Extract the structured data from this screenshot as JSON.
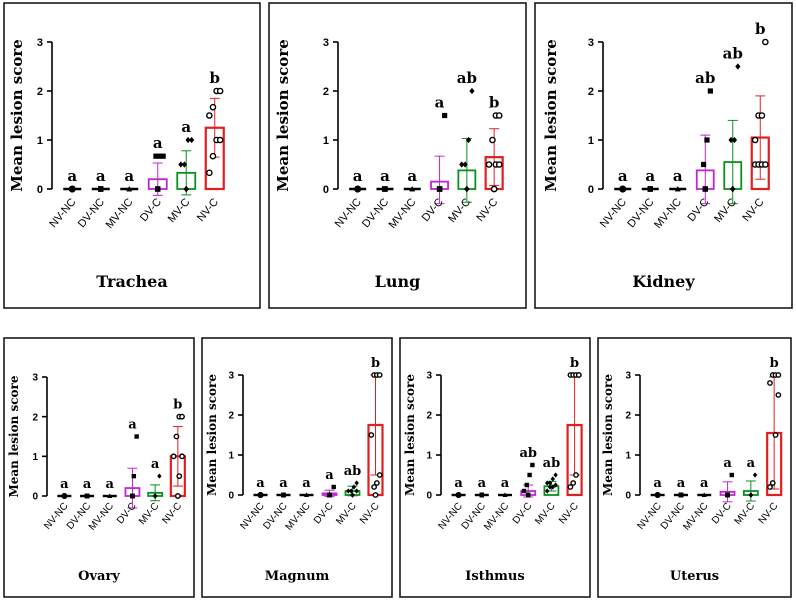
{
  "figure": {
    "ylabel": "Mean lesion score"
  },
  "chart_data": [
    {
      "type": "bar",
      "title": "Trachea",
      "ylabel": "Mean lesion score",
      "ylim": [
        0,
        3
      ],
      "yticks": [
        0,
        1,
        2,
        3
      ],
      "categories": [
        "NV-NC",
        "DV-NC",
        "MV-NC",
        "DV-C",
        "MV-C",
        "NV-C"
      ],
      "series": [
        {
          "name": "Mean lesion score",
          "values": [
            0,
            0,
            0,
            0.2,
            0.33,
            1.25
          ],
          "errors": [
            0,
            0,
            0,
            0.33,
            0.45,
            0.6
          ],
          "letters": [
            "a",
            "a",
            "a",
            "a",
            "a",
            "b"
          ],
          "points": [
            [
              0,
              0,
              0,
              0,
              0,
              0,
              0,
              0
            ],
            [
              0,
              0,
              0,
              0,
              0,
              0,
              0,
              0
            ],
            [
              0,
              0,
              0,
              0,
              0,
              0,
              0,
              0
            ],
            [
              0,
              0,
              0,
              0,
              0,
              0.67,
              0.67,
              0.67
            ],
            [
              0,
              0,
              0,
              0,
              0.5,
              0.5,
              1,
              1
            ],
            [
              0.33,
              0.67,
              1,
              1,
              1.5,
              1.67,
              2,
              2
            ]
          ],
          "markers": [
            "circle",
            "square",
            "triangle",
            "square",
            "diamond",
            "circle"
          ]
        }
      ]
    },
    {
      "type": "bar",
      "title": "Lung",
      "ylabel": "Mean lesion score",
      "ylim": [
        0,
        3
      ],
      "yticks": [
        0,
        1,
        2,
        3
      ],
      "categories": [
        "NV-NC",
        "DV-NC",
        "MV-NC",
        "DV-C",
        "MV-C",
        "NV-C"
      ],
      "series": [
        {
          "name": "Mean lesion score",
          "values": [
            0,
            0,
            0,
            0.15,
            0.38,
            0.65
          ],
          "errors": [
            0,
            0,
            0,
            0.52,
            0.65,
            0.58
          ],
          "letters": [
            "a",
            "a",
            "a",
            "a",
            "ab",
            "b"
          ],
          "points": [
            [
              0,
              0,
              0,
              0,
              0,
              0,
              0,
              0
            ],
            [
              0,
              0,
              0,
              0,
              0,
              0,
              0,
              0
            ],
            [
              0,
              0,
              0,
              0,
              0,
              0,
              0,
              0
            ],
            [
              0,
              0,
              0,
              0,
              0,
              0,
              0,
              1.5
            ],
            [
              0,
              0,
              0,
              0,
              0.5,
              0.5,
              1,
              2
            ],
            [
              0,
              0,
              0.5,
              0.5,
              0.5,
              1,
              1.5,
              1.5
            ]
          ],
          "markers": [
            "circle",
            "square",
            "triangle",
            "square",
            "diamond",
            "circle"
          ]
        }
      ]
    },
    {
      "type": "bar",
      "title": "Kidney",
      "ylabel": "Mean lesion score",
      "ylim": [
        0,
        3
      ],
      "yticks": [
        0,
        1,
        2,
        3
      ],
      "categories": [
        "NV-NC",
        "DV-NC",
        "MV-NC",
        "DV-C",
        "MV-C",
        "NV-C"
      ],
      "series": [
        {
          "name": "Mean lesion score",
          "values": [
            0,
            0,
            0,
            0.38,
            0.55,
            1.05
          ],
          "errors": [
            0,
            0,
            0,
            0.72,
            0.85,
            0.85
          ],
          "letters": [
            "a",
            "a",
            "a",
            "ab",
            "ab",
            "b"
          ],
          "points": [
            [
              0,
              0,
              0,
              0,
              0,
              0,
              0,
              0
            ],
            [
              0,
              0,
              0,
              0,
              0,
              0,
              0,
              0
            ],
            [
              0,
              0,
              0,
              0,
              0,
              0,
              0,
              0
            ],
            [
              0,
              0,
              0,
              0,
              0,
              0.5,
              1,
              2
            ],
            [
              0,
              0,
              0,
              0,
              0,
              1,
              1,
              2.5
            ],
            [
              0.5,
              0.5,
              0.5,
              0.5,
              1,
              1.5,
              1.5,
              3
            ]
          ],
          "markers": [
            "circle",
            "square",
            "triangle",
            "square",
            "diamond",
            "circle"
          ]
        }
      ]
    },
    {
      "type": "bar",
      "title": "Ovary",
      "ylabel": "Mean lesion score",
      "ylim": [
        0,
        3
      ],
      "yticks": [
        0,
        1,
        2,
        3
      ],
      "categories": [
        "NV-NC",
        "DV-NC",
        "MV-NC",
        "DV-C",
        "MV-C",
        "NV-C"
      ],
      "series": [
        {
          "name": "Mean lesion score",
          "values": [
            0,
            0,
            0,
            0.2,
            0.08,
            1.0
          ],
          "errors": [
            0,
            0,
            0,
            0.5,
            0.2,
            0.75
          ],
          "letters": [
            "a",
            "a",
            "a",
            "a",
            "a",
            "b"
          ],
          "points": [
            [
              0,
              0,
              0,
              0,
              0,
              0,
              0,
              0
            ],
            [
              0,
              0,
              0,
              0,
              0,
              0,
              0,
              0
            ],
            [
              0,
              0,
              0,
              0,
              0,
              0,
              0,
              0
            ],
            [
              0,
              0,
              0,
              0,
              0,
              0,
              0.5,
              1.5
            ],
            [
              0,
              0,
              0,
              0,
              0,
              0,
              0,
              0.5
            ],
            [
              0,
              0,
              0.5,
              1,
              1,
              1.5,
              2,
              2
            ]
          ],
          "markers": [
            "circle",
            "square",
            "triangle",
            "square",
            "diamond",
            "circle"
          ]
        }
      ]
    },
    {
      "type": "bar",
      "title": "Magnum",
      "ylabel": "Mean lesion score",
      "ylim": [
        0,
        3
      ],
      "yticks": [
        0,
        1,
        2,
        3
      ],
      "categories": [
        "NV-NC",
        "DV-NC",
        "MV-NC",
        "DV-C",
        "MV-C",
        "NV-C"
      ],
      "series": [
        {
          "name": "Mean lesion score",
          "values": [
            0,
            0,
            0,
            0.04,
            0.1,
            1.75
          ],
          "errors": [
            0,
            0,
            0,
            0.08,
            0.12,
            1.25
          ],
          "letters": [
            "a",
            "a",
            "a",
            "a",
            "ab",
            "b"
          ],
          "points": [
            [
              0,
              0,
              0,
              0,
              0,
              0,
              0,
              0
            ],
            [
              0,
              0,
              0,
              0,
              0,
              0,
              0,
              0
            ],
            [
              0,
              0,
              0,
              0,
              0,
              0,
              0,
              0
            ],
            [
              0,
              0,
              0,
              0,
              0,
              0,
              0,
              0.2
            ],
            [
              0,
              0,
              0,
              0.1,
              0.1,
              0.1,
              0.2,
              0.3
            ],
            [
              0,
              0.2,
              0.3,
              0.5,
              1.5,
              3,
              3,
              3
            ]
          ],
          "markers": [
            "circle",
            "square",
            "triangle",
            "square",
            "diamond",
            "circle"
          ]
        }
      ]
    },
    {
      "type": "bar",
      "title": "Isthmus",
      "ylabel": "Mean lesion score",
      "ylim": [
        0,
        3
      ],
      "yticks": [
        0,
        1,
        2,
        3
      ],
      "categories": [
        "NV-NC",
        "DV-NC",
        "MV-NC",
        "DV-C",
        "MV-C",
        "NV-C"
      ],
      "series": [
        {
          "name": "Mean lesion score",
          "values": [
            0,
            0,
            0,
            0.1,
            0.22,
            1.75
          ],
          "errors": [
            0,
            0,
            0,
            0.15,
            0.12,
            1.25
          ],
          "letters": [
            "a",
            "a",
            "a",
            "ab",
            "ab",
            "b"
          ],
          "points": [
            [
              0,
              0,
              0,
              0,
              0,
              0,
              0,
              0
            ],
            [
              0,
              0,
              0,
              0,
              0,
              0,
              0,
              0
            ],
            [
              0,
              0,
              0,
              0,
              0,
              0,
              0,
              0
            ],
            [
              0,
              0,
              0,
              0,
              0.1,
              0.25,
              0.5,
              0.75
            ],
            [
              0.1,
              0.2,
              0.2,
              0.25,
              0.3,
              0.3,
              0.4,
              0.5
            ],
            [
              0.2,
              0.3,
              0.5,
              3,
              3,
              3,
              3,
              3
            ]
          ],
          "markers": [
            "circle",
            "square",
            "triangle",
            "square",
            "diamond",
            "circle"
          ]
        }
      ]
    },
    {
      "type": "bar",
      "title": "Uterus",
      "ylabel": "Mean lesion score",
      "ylim": [
        0,
        3
      ],
      "yticks": [
        0,
        1,
        2,
        3
      ],
      "categories": [
        "NV-NC",
        "DV-NC",
        "MV-NC",
        "DV-C",
        "MV-C",
        "NV-C"
      ],
      "series": [
        {
          "name": "Mean lesion score",
          "values": [
            0,
            0,
            0,
            0.08,
            0.1,
            1.55
          ],
          "errors": [
            0,
            0,
            0,
            0.25,
            0.25,
            1.4
          ],
          "letters": [
            "a",
            "a",
            "a",
            "a",
            "a",
            "b"
          ],
          "points": [
            [
              0,
              0,
              0,
              0,
              0,
              0,
              0,
              0
            ],
            [
              0,
              0,
              0,
              0,
              0,
              0,
              0,
              0
            ],
            [
              0,
              0,
              0,
              0,
              0,
              0,
              0,
              0
            ],
            [
              0,
              0,
              0,
              0,
              0,
              0,
              0,
              0.5
            ],
            [
              0,
              0,
              0,
              0,
              0,
              0,
              0,
              0.5
            ],
            [
              0.2,
              0.3,
              1.5,
              2.5,
              2.8,
              3,
              3,
              3
            ]
          ],
          "markers": [
            "circle",
            "square",
            "triangle",
            "square",
            "diamond",
            "circle"
          ]
        }
      ]
    }
  ],
  "style": {
    "group_colors": [
      "#000000",
      "#000000",
      "#000000",
      "#c026d3",
      "#0a8f20",
      "#e02020"
    ]
  }
}
